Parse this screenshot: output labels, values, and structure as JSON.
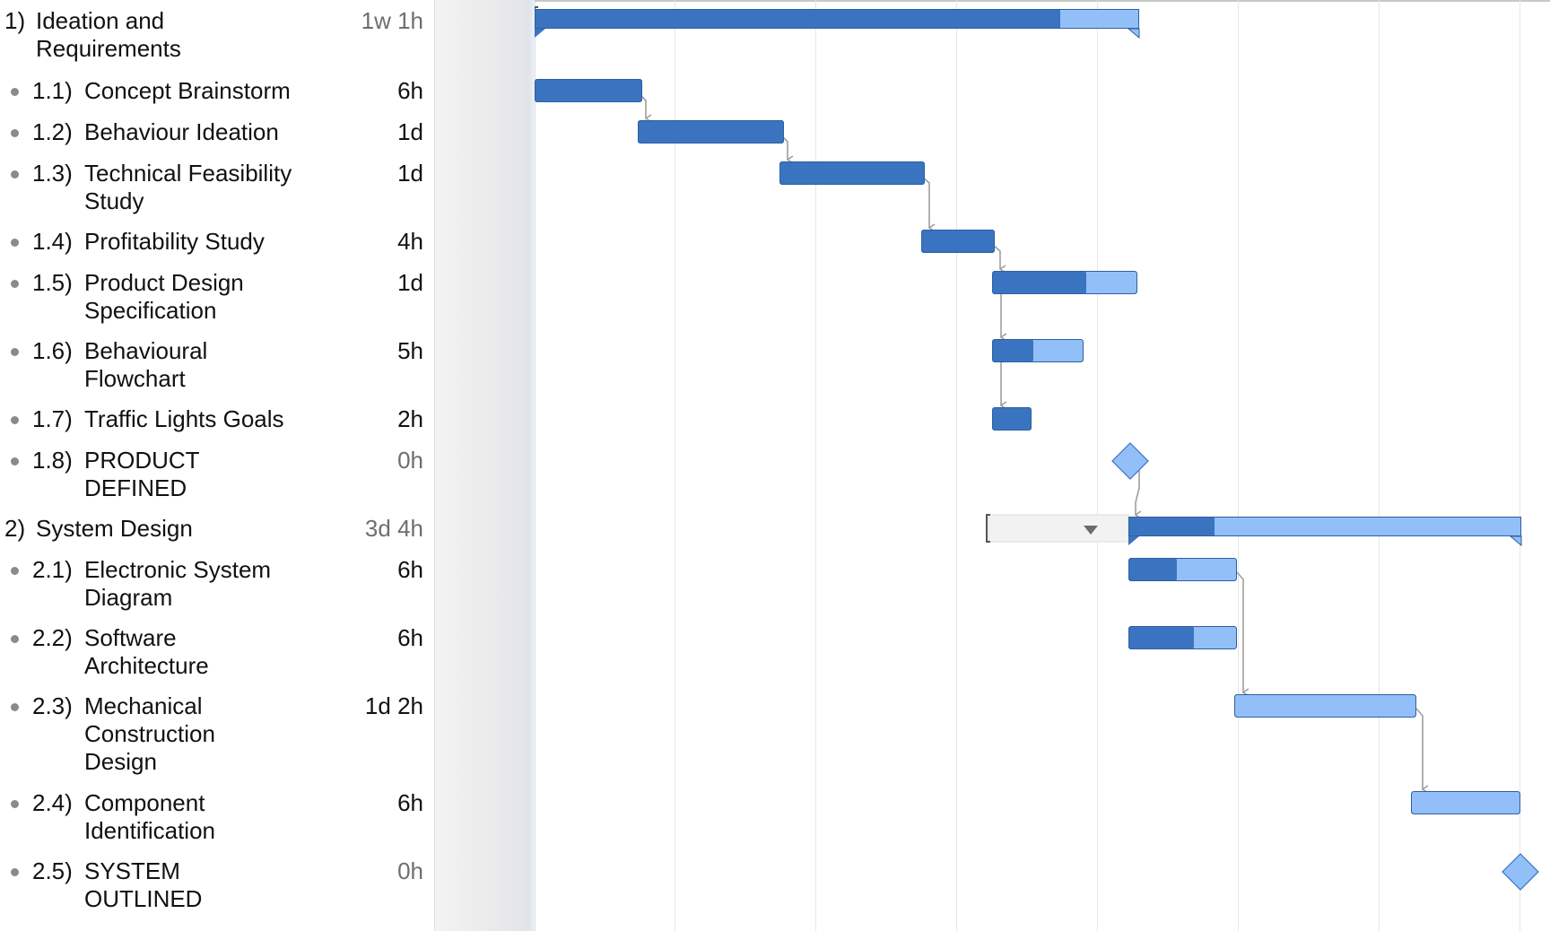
{
  "colors": {
    "done": "#3a74c1",
    "remaining": "#93bff8",
    "dependency": "#9e9e9e",
    "gridline": "#e6e6e6"
  },
  "tasks": [
    {
      "number": "1)",
      "title": "Ideation and\nRequirements",
      "duration": "1w 1h",
      "level": 0,
      "kind": "group",
      "progress": 0.87
    },
    {
      "number": "1.1)",
      "title": "Concept Brainstorm",
      "duration": "6h",
      "level": 1,
      "kind": "task",
      "progress": 1.0
    },
    {
      "number": "1.2)",
      "title": "Behaviour Ideation",
      "duration": "1d",
      "level": 1,
      "kind": "task",
      "progress": 1.0
    },
    {
      "number": "1.3)",
      "title": "Technical Feasibility\nStudy",
      "duration": "1d",
      "level": 1,
      "kind": "task",
      "progress": 1.0
    },
    {
      "number": "1.4)",
      "title": "Profitability Study",
      "duration": "4h",
      "level": 1,
      "kind": "task",
      "progress": 1.0
    },
    {
      "number": "1.5)",
      "title": "Product Design\nSpecification",
      "duration": "1d",
      "level": 1,
      "kind": "task",
      "progress": 0.65
    },
    {
      "number": "1.6)",
      "title": "Behavioural\nFlowchart",
      "duration": "5h",
      "level": 1,
      "kind": "task",
      "progress": 0.45
    },
    {
      "number": "1.7)",
      "title": "Traffic Lights Goals",
      "duration": "2h",
      "level": 1,
      "kind": "task",
      "progress": 1.0
    },
    {
      "number": "1.8)",
      "title": "PRODUCT\nDEFINED",
      "duration": "0h",
      "level": 1,
      "kind": "milestone",
      "progress": 0
    },
    {
      "number": "2)",
      "title": "System Design",
      "duration": "3d 4h",
      "level": 0,
      "kind": "group",
      "progress": 0.22
    },
    {
      "number": "2.1)",
      "title": "Electronic System\nDiagram",
      "duration": "6h",
      "level": 1,
      "kind": "task",
      "progress": 0.45
    },
    {
      "number": "2.2)",
      "title": "Software\nArchitecture",
      "duration": "6h",
      "level": 1,
      "kind": "task",
      "progress": 0.6
    },
    {
      "number": "2.3)",
      "title": "Mechanical\nConstruction\nDesign",
      "duration": "1d 2h",
      "level": 1,
      "kind": "task",
      "progress": 0
    },
    {
      "number": "2.4)",
      "title": "Component\nIdentification",
      "duration": "6h",
      "level": 1,
      "kind": "task",
      "progress": 0
    },
    {
      "number": "2.5)",
      "title": "SYSTEM\nOUTLINED",
      "duration": "0h",
      "level": 1,
      "kind": "milestone",
      "progress": 0
    }
  ],
  "icons": {
    "collapse": "disclosure-triangle-icon",
    "milestone": "diamond-icon"
  }
}
